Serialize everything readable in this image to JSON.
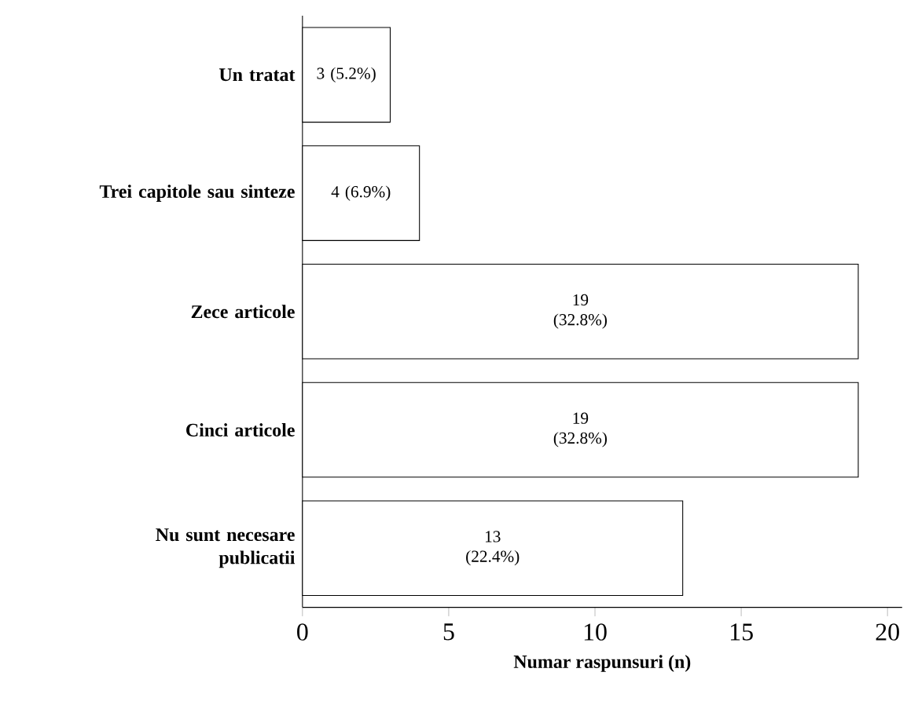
{
  "chart_data": {
    "type": "bar",
    "orientation": "horizontal",
    "xlabel": "Numar raspunsuri (n)",
    "categories": [
      "Un tratat",
      "Trei capitole sau sinteze",
      "Zece articole",
      "Cinci articole",
      "Nu sunt necesare publicatii"
    ],
    "values": [
      3,
      4,
      19,
      19,
      13
    ],
    "value_labels": [
      "3 (5.2%)",
      "4 (6.9%)",
      "19 (32.8%)",
      "19 (32.8%)",
      "13 (22.4%)"
    ],
    "color": "#ffffff",
    "xlim": [
      0,
      20.5
    ],
    "xticks": [
      0,
      5,
      10,
      15,
      20
    ],
    "grid": false
  }
}
